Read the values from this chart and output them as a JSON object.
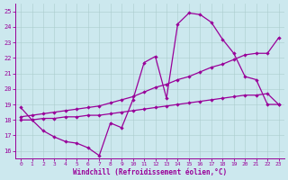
{
  "xlabel": "Windchill (Refroidissement éolien,°C)",
  "xlim": [
    -0.5,
    23.5
  ],
  "ylim": [
    15.5,
    25.5
  ],
  "xticks": [
    0,
    1,
    2,
    3,
    4,
    5,
    6,
    7,
    8,
    9,
    10,
    11,
    12,
    13,
    14,
    15,
    16,
    17,
    18,
    19,
    20,
    21,
    22,
    23
  ],
  "yticks": [
    16,
    17,
    18,
    19,
    20,
    21,
    22,
    23,
    24,
    25
  ],
  "background_color": "#cce8ee",
  "line_color": "#990099",
  "grid_color": "#aacccc",
  "curve1_x": [
    0,
    1,
    2,
    3,
    4,
    5,
    6,
    7,
    8,
    9,
    10,
    11,
    12,
    13,
    14,
    15,
    16,
    17,
    18,
    19,
    20,
    21,
    22,
    23
  ],
  "curve1_y": [
    18.8,
    18.0,
    17.3,
    16.9,
    16.6,
    16.5,
    16.2,
    15.7,
    17.8,
    17.5,
    19.3,
    21.7,
    22.1,
    19.4,
    24.2,
    24.9,
    24.8,
    24.3,
    23.2,
    22.3,
    20.8,
    20.6,
    19.0,
    19.0
  ],
  "curve2_x": [
    0,
    1,
    2,
    3,
    4,
    5,
    6,
    7,
    8,
    9,
    10,
    11,
    12,
    13,
    14,
    15,
    16,
    17,
    18,
    19,
    20,
    21,
    22,
    23
  ],
  "curve2_y": [
    18.2,
    18.3,
    18.4,
    18.5,
    18.6,
    18.7,
    18.8,
    18.9,
    19.1,
    19.3,
    19.5,
    19.8,
    20.1,
    20.3,
    20.6,
    20.8,
    21.1,
    21.4,
    21.6,
    21.9,
    22.2,
    22.3,
    22.3,
    23.3
  ],
  "curve3_x": [
    0,
    1,
    2,
    3,
    4,
    5,
    6,
    7,
    8,
    9,
    10,
    11,
    12,
    13,
    14,
    15,
    16,
    17,
    18,
    19,
    20,
    21,
    22,
    23
  ],
  "curve3_y": [
    18.0,
    18.0,
    18.1,
    18.1,
    18.2,
    18.2,
    18.3,
    18.3,
    18.4,
    18.5,
    18.6,
    18.7,
    18.8,
    18.9,
    19.0,
    19.1,
    19.2,
    19.3,
    19.4,
    19.5,
    19.6,
    19.6,
    19.7,
    19.0
  ]
}
